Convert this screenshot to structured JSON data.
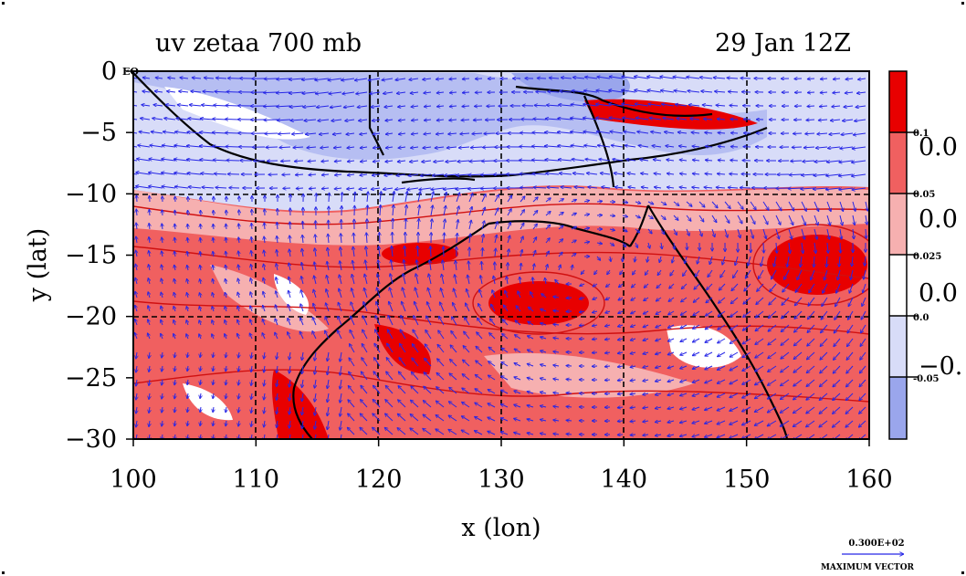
{
  "title": "uv zetaa 700 mb",
  "time": "29 Jan 12Z",
  "xlabel": "x (lon)",
  "ylabel": "y (lat)",
  "corner_label": "EQ",
  "x_ticks": [
    "100",
    "110",
    "120",
    "130",
    "140",
    "150",
    "160"
  ],
  "y_ticks": [
    "0",
    "−5",
    "−10",
    "−15",
    "−20",
    "−25",
    "−30"
  ],
  "colorbar": {
    "levels_small": [
      "0.1",
      "0.05",
      "0.025",
      "0.0",
      "-0.05"
    ],
    "levels_large": [
      "0.0",
      "0.0",
      "0.0",
      "−0."
    ],
    "colors": [
      "#e80000",
      "#f06060",
      "#f6b0b0",
      "#ffffff",
      "#d8dcf8",
      "#9aa6ec"
    ]
  },
  "vector_key": {
    "value": "0.300E+02",
    "label": "MAXIMUM VECTOR"
  },
  "colors": {
    "vector": "#2626e6",
    "contour_pos": "#d01010",
    "coast": "#000000",
    "grid": "#000000"
  }
}
